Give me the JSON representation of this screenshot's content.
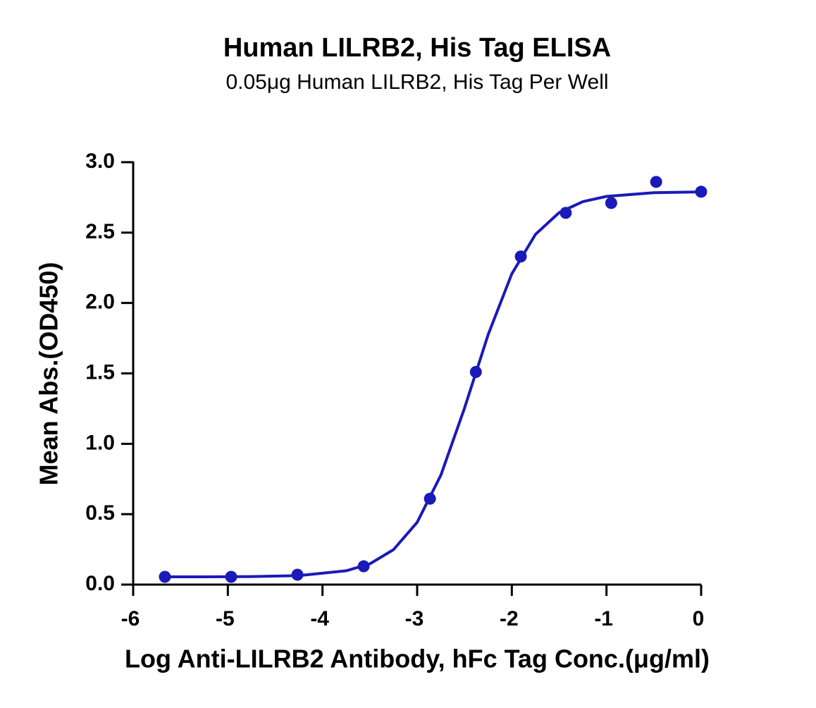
{
  "chart_data": {
    "type": "scatter",
    "title": "Human LILRB2, His Tag ELISA",
    "subtitle": "0.05μg Human LILRB2, His Tag Per Well",
    "x_label": "Log Anti-LILRB2 Antibody, hFc Tag Conc.(μg/ml)",
    "y_label": "Mean Abs.(OD450)",
    "color": "#1a1ab8",
    "x": [
      -5.665,
      -4.965,
      -4.265,
      -3.565,
      -2.865,
      -2.38,
      -1.905,
      -1.43,
      -0.95,
      -0.475,
      0
    ],
    "values": [
      0.055,
      0.055,
      0.07,
      0.13,
      0.61,
      1.51,
      2.33,
      2.64,
      2.71,
      2.86,
      2.79
    ],
    "curve": {
      "x": [
        -5.665,
        -5.25,
        -4.75,
        -4.25,
        -3.75,
        -3.5,
        -3.25,
        -3,
        -2.75,
        -2.5,
        -2.25,
        -2,
        -1.75,
        -1.5,
        -1.25,
        -1,
        -0.5,
        0
      ],
      "values": [
        0.055,
        0.055,
        0.057,
        0.064,
        0.098,
        0.147,
        0.248,
        0.442,
        0.777,
        1.253,
        1.776,
        2.207,
        2.487,
        2.642,
        2.72,
        2.757,
        2.783,
        2.789
      ]
    },
    "xlim": [
      -6,
      0
    ],
    "xticks": [
      -6,
      -5,
      -4,
      -3,
      -2,
      -1,
      0
    ],
    "ylim": [
      0,
      3
    ],
    "yticks": [
      {
        "value": 0,
        "label": "0.0"
      },
      0.5,
      {
        "value": 1,
        "label": "1.0"
      },
      1.5,
      {
        "value": 2,
        "label": "2.0"
      },
      2.5,
      {
        "value": 3,
        "label": "3.0"
      }
    ]
  }
}
